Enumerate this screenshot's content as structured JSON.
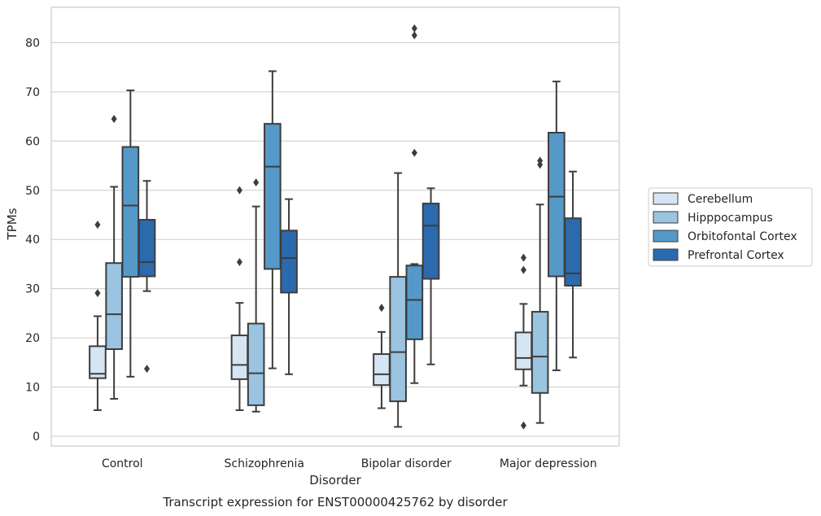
{
  "chart_data": {
    "type": "box",
    "title": "",
    "caption": "Transcript expression for ENST00000425762 by disorder",
    "xlabel": "Disorder",
    "ylabel": "TPMs",
    "ylim": [
      -2,
      87.5
    ],
    "yticks": [
      0,
      10,
      20,
      30,
      40,
      50,
      60,
      70,
      80
    ],
    "grid": "horizontal",
    "legend_position": "right",
    "categories": [
      "Control",
      "Schizophrenia",
      "Bipolar disorder",
      "Major depression"
    ],
    "series": [
      {
        "name": "Cerebellum",
        "color": "#d6e5f3",
        "boxes": [
          {
            "whislo": 5.3,
            "q1": 11.8,
            "med": 12.7,
            "q3": 18.3,
            "whishi": 24.4,
            "fliers": [
              29.1,
              43.0
            ]
          },
          {
            "whislo": 5.3,
            "q1": 11.6,
            "med": 14.5,
            "q3": 20.5,
            "whishi": 27.1,
            "fliers": [
              35.4,
              50.0
            ]
          },
          {
            "whislo": 5.7,
            "q1": 10.4,
            "med": 12.6,
            "q3": 16.7,
            "whishi": 21.2,
            "fliers": [
              26.1
            ]
          },
          {
            "whislo": 10.3,
            "q1": 13.6,
            "med": 15.9,
            "q3": 21.1,
            "whishi": 26.9,
            "fliers": [
              2.2,
              33.8,
              36.3
            ]
          }
        ]
      },
      {
        "name": "Hipppocampus",
        "color": "#9ac4e0",
        "boxes": [
          {
            "whislo": 7.6,
            "q1": 17.7,
            "med": 24.8,
            "q3": 35.2,
            "whishi": 50.7,
            "fliers": [
              64.5
            ]
          },
          {
            "whislo": 5.0,
            "q1": 6.3,
            "med": 12.8,
            "q3": 22.9,
            "whishi": 46.7,
            "fliers": [
              51.6
            ]
          },
          {
            "whislo": 1.9,
            "q1": 7.1,
            "med": 17.1,
            "q3": 32.4,
            "whishi": 53.5,
            "fliers": []
          },
          {
            "whislo": 2.7,
            "q1": 8.8,
            "med": 16.2,
            "q3": 25.3,
            "whishi": 47.1,
            "fliers": [
              55.2,
              56.0
            ]
          }
        ]
      },
      {
        "name": "Orbitofontal Cortex",
        "color": "#5599c8",
        "boxes": [
          {
            "whislo": 12.1,
            "q1": 32.4,
            "med": 46.9,
            "q3": 58.8,
            "whishi": 70.3,
            "fliers": []
          },
          {
            "whislo": 13.8,
            "q1": 34.0,
            "med": 54.8,
            "q3": 63.5,
            "whishi": 74.2,
            "fliers": []
          },
          {
            "whislo": 10.8,
            "q1": 19.7,
            "med": 27.7,
            "q3": 34.7,
            "whishi": 35.0,
            "fliers": [
              57.6,
              81.5,
              82.9
            ]
          },
          {
            "whislo": 13.4,
            "q1": 32.5,
            "med": 48.7,
            "q3": 61.7,
            "whishi": 72.1,
            "fliers": []
          }
        ]
      },
      {
        "name": "Prefrontal Cortex",
        "color": "#2b6aad",
        "boxes": [
          {
            "whislo": 29.5,
            "q1": 32.5,
            "med": 35.4,
            "q3": 44.0,
            "whishi": 51.9,
            "fliers": [
              13.7
            ]
          },
          {
            "whislo": 12.6,
            "q1": 29.2,
            "med": 36.2,
            "q3": 41.8,
            "whishi": 48.2,
            "fliers": []
          },
          {
            "whislo": 14.6,
            "q1": 32.0,
            "med": 42.8,
            "q3": 47.3,
            "whishi": 50.4,
            "fliers": []
          },
          {
            "whislo": 16.0,
            "q1": 30.6,
            "med": 33.1,
            "q3": 44.3,
            "whishi": 53.8,
            "fliers": []
          }
        ]
      }
    ]
  }
}
